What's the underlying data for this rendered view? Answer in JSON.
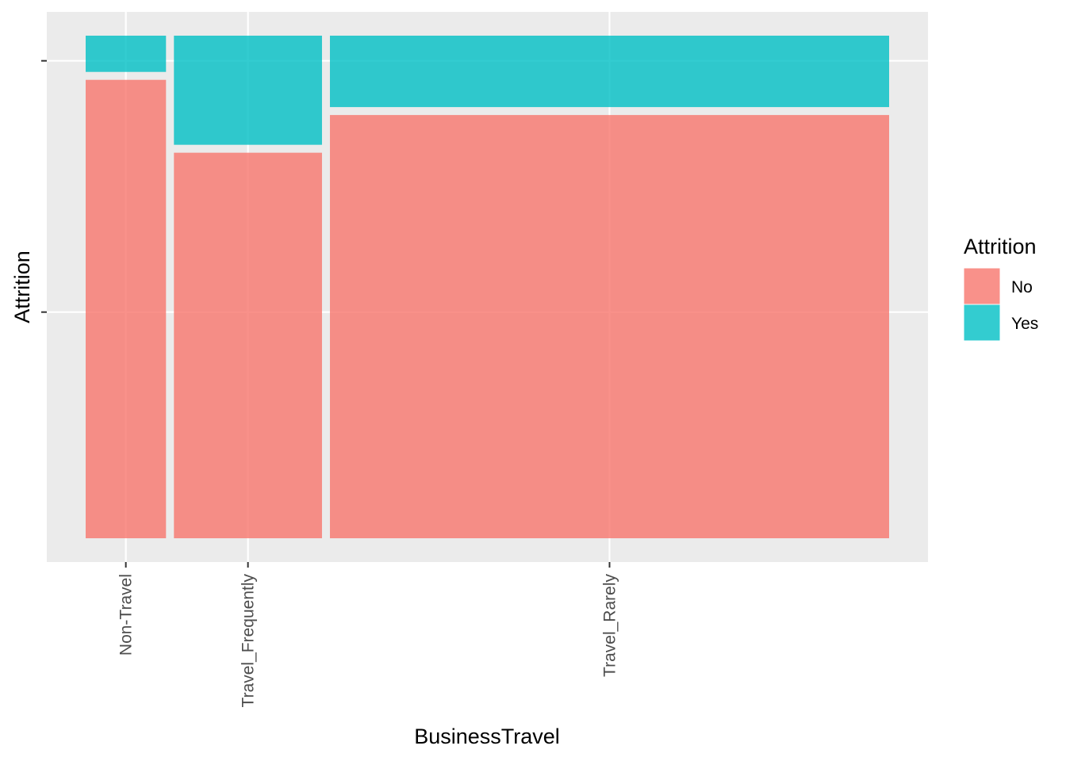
{
  "chart_data": {
    "type": "mosaic",
    "xlabel": "BusinessTravel",
    "ylabel": "Attrition",
    "categories": [
      "Non-Travel",
      "Travel_Frequently",
      "Travel_Rarely"
    ],
    "category_widths": [
      0.102,
      0.188,
      0.71
    ],
    "series": [
      {
        "name": "No",
        "values": [
          0.92,
          0.775,
          0.85
        ],
        "color": "#F8766D"
      },
      {
        "name": "Yes",
        "values": [
          0.08,
          0.225,
          0.15
        ],
        "color": "#00BFC4"
      }
    ],
    "legend": {
      "title": "Attrition",
      "position": "right"
    },
    "grid": true,
    "y_tick_labels": false
  }
}
